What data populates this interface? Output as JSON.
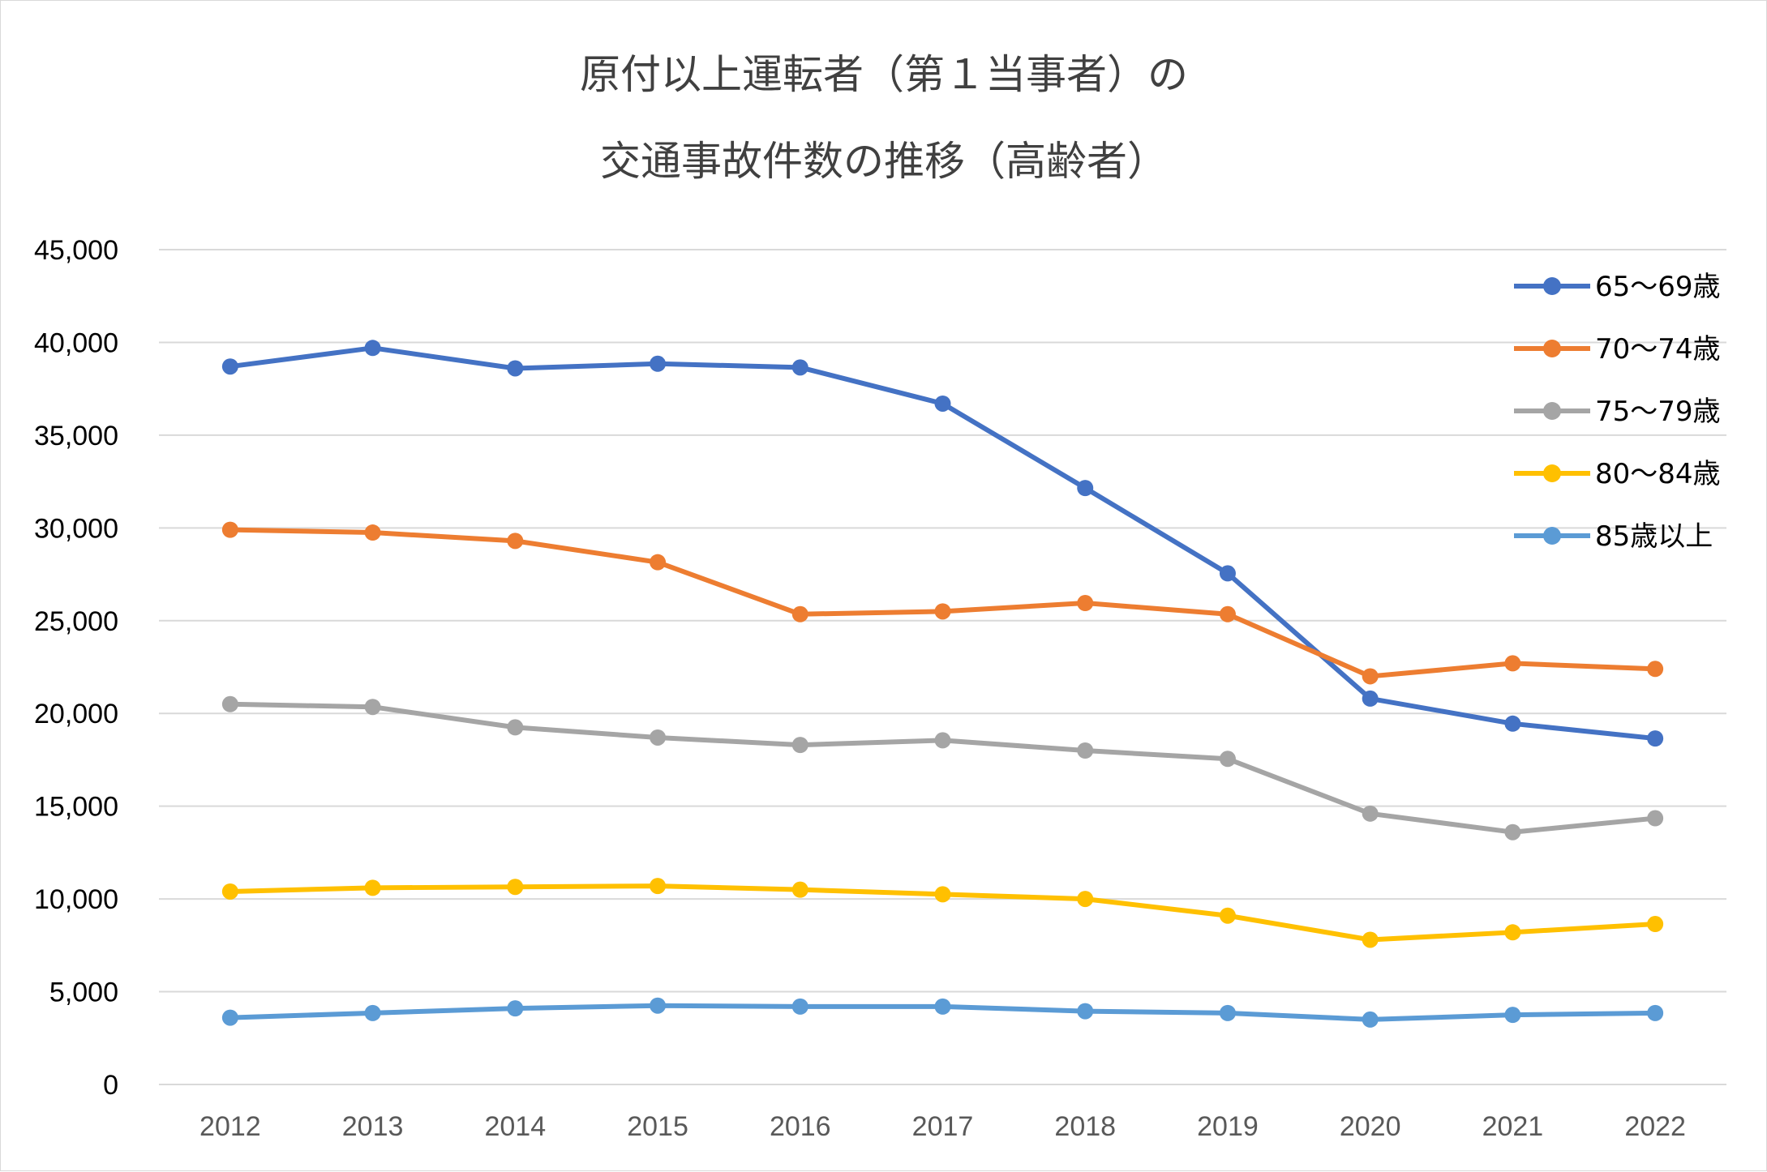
{
  "chart_data": {
    "type": "line",
    "title_lines": [
      "原付以上運転者（第１当事者）の",
      "交通事故件数の推移（高齢者）"
    ],
    "x": [
      "2012",
      "2013",
      "2014",
      "2015",
      "2016",
      "2017",
      "2018",
      "2019",
      "2020",
      "2021",
      "2022"
    ],
    "ylim": [
      0,
      45000
    ],
    "yticks": [
      0,
      5000,
      10000,
      15000,
      20000,
      25000,
      30000,
      35000,
      40000,
      45000
    ],
    "ytick_labels": [
      "0",
      "5,000",
      "10,000",
      "15,000",
      "20,000",
      "25,000",
      "30,000",
      "35,000",
      "40,000",
      "45,000"
    ],
    "grid": true,
    "legend_position": "right",
    "series": [
      {
        "name": "65〜69歳",
        "color": "#4472C4",
        "values": [
          38700,
          39700,
          38600,
          38850,
          38650,
          36700,
          32150,
          27550,
          20800,
          19450,
          18650
        ]
      },
      {
        "name": "70〜74歳",
        "color": "#ED7D31",
        "values": [
          29900,
          29750,
          29300,
          28150,
          25350,
          25500,
          25950,
          25350,
          22000,
          22700,
          22400
        ]
      },
      {
        "name": "75〜79歳",
        "color": "#A5A5A5",
        "values": [
          20500,
          20350,
          19250,
          18700,
          18300,
          18550,
          18000,
          17550,
          14600,
          13600,
          14350
        ]
      },
      {
        "name": "80〜84歳",
        "color": "#FFC000",
        "values": [
          10400,
          10600,
          10650,
          10700,
          10500,
          10250,
          10000,
          9100,
          7800,
          8200,
          8650
        ]
      },
      {
        "name": "85歳以上",
        "color": "#5B9BD5",
        "values": [
          3600,
          3850,
          4100,
          4250,
          4200,
          4200,
          3950,
          3850,
          3500,
          3750,
          3850
        ]
      }
    ]
  }
}
